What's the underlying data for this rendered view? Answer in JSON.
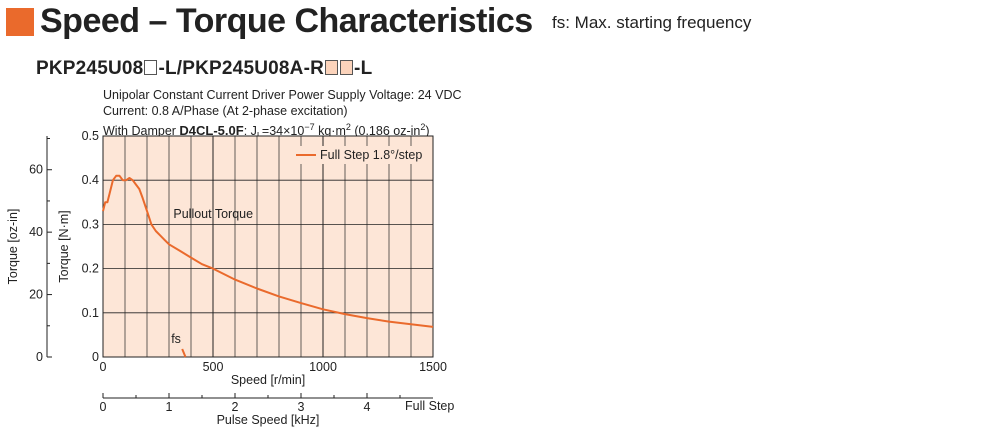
{
  "header": {
    "title": "Speed – Torque Characteristics",
    "subtitle": "fs: Max. starting frequency"
  },
  "model": {
    "part1": "PKP245U08",
    "part2": "-L/PKP245U08A-R",
    "part3": "-L"
  },
  "conditions": {
    "line1": "Unipolar Constant Current Driver  Power Supply Voltage: 24 VDC",
    "line2": "Current: 0.8 A/Phase (At 2-phase excitation)",
    "line3_prefix": "With Damper ",
    "damper_name": "D4CL-5.0F",
    "line3_suffix": ": J",
    "inertia_subscript": "L",
    "inertia_value": "=34×10",
    "inertia_exponent": "−7",
    "inertia_unit": " kg·m",
    "inertia_unit_exp": "2",
    "inertia_alt": " (0.186 oz-in",
    "inertia_alt_exp": "2",
    "inertia_alt_close": ")"
  },
  "chart_data": {
    "type": "line",
    "x_axis": {
      "label": "Speed [r/min]",
      "range": [
        0,
        1500
      ],
      "ticks": [
        0,
        500,
        1000,
        1500
      ],
      "tick_labels": [
        "0",
        "500",
        "1000",
        "1500"
      ]
    },
    "secondary_x_axis": {
      "label": "Pulse Speed [kHz]",
      "range": [
        0,
        5
      ],
      "ticks": [
        0,
        1,
        2,
        3,
        4
      ],
      "tick_labels": [
        "0",
        "1",
        "2",
        "3",
        "4"
      ],
      "end_label": "Full Step"
    },
    "y_axis": {
      "label": "Torque [N·m]",
      "range": [
        0,
        0.5
      ],
      "ticks": [
        0,
        0.1,
        0.2,
        0.3,
        0.4,
        0.5
      ],
      "tick_labels": [
        "0",
        "0.1",
        "0.2",
        "0.3",
        "0.4",
        "0.5"
      ]
    },
    "secondary_y_axis": {
      "label": "Torque [oz-in]",
      "ticks": [
        0,
        20,
        40,
        60
      ],
      "tick_labels": [
        "0",
        "20",
        "40",
        "60"
      ]
    },
    "grid": true,
    "background_color": "#fde6d7",
    "grid_color": "#222222",
    "series": [
      {
        "name": "Full Step 1.8°/step",
        "color": "#ea6a2c",
        "x": [
          0,
          10,
          20,
          30,
          45,
          60,
          75,
          90,
          105,
          120,
          135,
          150,
          165,
          180,
          200,
          220,
          240,
          260,
          280,
          300,
          350,
          400,
          450,
          500,
          600,
          700,
          800,
          900,
          1000,
          1100,
          1200,
          1300,
          1400,
          1500
        ],
        "y": [
          0.33,
          0.35,
          0.35,
          0.37,
          0.4,
          0.41,
          0.41,
          0.4,
          0.4,
          0.405,
          0.4,
          0.39,
          0.38,
          0.36,
          0.33,
          0.3,
          0.285,
          0.275,
          0.265,
          0.255,
          0.24,
          0.225,
          0.21,
          0.2,
          0.175,
          0.155,
          0.137,
          0.122,
          0.108,
          0.097,
          0.088,
          0.08,
          0.074,
          0.068
        ]
      }
    ],
    "fs_series": {
      "label": "fs",
      "color": "#ea6a2c",
      "x": [
        360,
        375
      ],
      "y": [
        0.018,
        0.0
      ]
    },
    "annotations": {
      "pullout": "Pullout Torque",
      "fs": "fs"
    },
    "legend": {
      "placement": "top-right",
      "text": "Full Step 1.8°/step"
    }
  }
}
